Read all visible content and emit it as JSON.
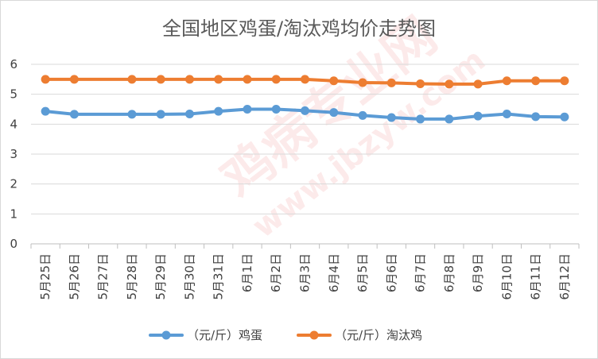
{
  "chart_data": {
    "type": "line",
    "title": "全国地区鸡蛋/淘汰鸡均价走势图",
    "xlabel": "",
    "ylabel": "",
    "categories": [
      "5月25日",
      "5月26日",
      "5月27日",
      "5月28日",
      "5月29日",
      "5月30日",
      "5月31日",
      "6月1日",
      "6月2日",
      "6月3日",
      "6月4日",
      "6月5日",
      "6月6日",
      "6月7日",
      "6月8日",
      "6月9日",
      "6月10日",
      "6月11日",
      "6月12日"
    ],
    "ylim": [
      0,
      6
    ],
    "yticks": [
      0,
      1,
      2,
      3,
      4,
      5,
      6
    ],
    "grid": true,
    "legend_position": "bottom",
    "series": [
      {
        "name": "（元/斤）鸡蛋",
        "color": "#5b9bd5",
        "values": [
          4.43,
          4.33,
          null,
          4.33,
          4.33,
          4.34,
          4.43,
          4.5,
          4.5,
          4.45,
          4.39,
          4.29,
          4.22,
          4.17,
          4.17,
          4.27,
          4.34,
          4.25,
          4.24
        ]
      },
      {
        "name": "（元/斤）淘汰鸡",
        "color": "#ed7d31",
        "values": [
          5.5,
          5.5,
          null,
          5.5,
          5.5,
          5.5,
          5.5,
          5.5,
          5.5,
          5.5,
          5.45,
          5.39,
          5.38,
          5.35,
          5.34,
          5.34,
          5.45,
          5.45,
          5.45
        ]
      }
    ]
  }
}
